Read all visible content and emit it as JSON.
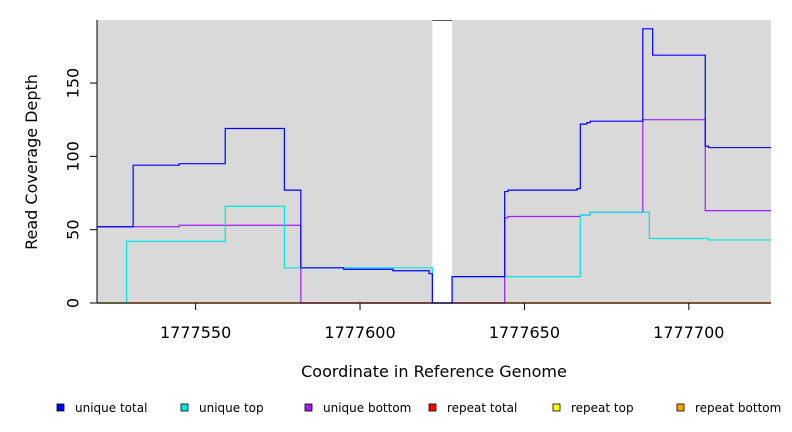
{
  "chart_data": {
    "type": "line",
    "step": true,
    "xlabel": "Coordinate in Reference Genome",
    "ylabel": "Read Coverage Depth",
    "xlim": [
      1777520,
      1777725
    ],
    "ylim": [
      0,
      193
    ],
    "xticks": [
      1777550,
      1777600,
      1777650,
      1777700
    ],
    "yticks": [
      0,
      50,
      100,
      150
    ],
    "gap": [
      1777622,
      1777628
    ],
    "background_color": "#d9d9d9",
    "series": [
      {
        "name": "unique total",
        "color": "#0000ff",
        "points": [
          [
            1777520,
            52
          ],
          [
            1777531,
            52
          ],
          [
            1777531,
            94
          ],
          [
            1777545,
            94
          ],
          [
            1777545,
            95
          ],
          [
            1777559,
            95
          ],
          [
            1777559,
            119
          ],
          [
            1777577,
            119
          ],
          [
            1777577,
            77
          ],
          [
            1777582,
            77
          ],
          [
            1777582,
            24
          ],
          [
            1777595,
            24
          ],
          [
            1777595,
            23
          ],
          [
            1777610,
            23
          ],
          [
            1777610,
            22
          ],
          [
            1777621,
            22
          ],
          [
            1777621,
            20
          ],
          [
            1777622,
            20
          ],
          [
            1777622,
            0
          ],
          [
            1777628,
            0
          ],
          [
            1777628,
            18
          ],
          [
            1777644,
            18
          ],
          [
            1777644,
            76
          ],
          [
            1777645,
            76
          ],
          [
            1777645,
            77
          ],
          [
            1777666,
            77
          ],
          [
            1777666,
            78
          ],
          [
            1777667,
            78
          ],
          [
            1777667,
            122
          ],
          [
            1777669,
            122
          ],
          [
            1777669,
            123
          ],
          [
            1777670,
            123
          ],
          [
            1777670,
            124
          ],
          [
            1777686,
            124
          ],
          [
            1777686,
            187
          ],
          [
            1777689,
            187
          ],
          [
            1777689,
            169
          ],
          [
            1777705,
            169
          ],
          [
            1777705,
            107
          ],
          [
            1777706,
            107
          ],
          [
            1777706,
            106
          ],
          [
            1777725,
            106
          ]
        ]
      },
      {
        "name": "unique top",
        "color": "#00e5e5",
        "points": [
          [
            1777520,
            0
          ],
          [
            1777529,
            0
          ],
          [
            1777529,
            42
          ],
          [
            1777559,
            42
          ],
          [
            1777559,
            66
          ],
          [
            1777577,
            66
          ],
          [
            1777577,
            24
          ],
          [
            1777622,
            24
          ],
          [
            1777622,
            0
          ],
          [
            1777628,
            0
          ],
          [
            1777628,
            18
          ],
          [
            1777667,
            18
          ],
          [
            1777667,
            60
          ],
          [
            1777670,
            60
          ],
          [
            1777670,
            62
          ],
          [
            1777688,
            62
          ],
          [
            1777688,
            44
          ],
          [
            1777706,
            44
          ],
          [
            1777706,
            43
          ],
          [
            1777725,
            43
          ]
        ]
      },
      {
        "name": "unique bottom",
        "color": "#a020f0",
        "points": [
          [
            1777520,
            52
          ],
          [
            1777545,
            52
          ],
          [
            1777545,
            53
          ],
          [
            1777582,
            53
          ],
          [
            1777582,
            0
          ],
          [
            1777644,
            0
          ],
          [
            1777644,
            58
          ],
          [
            1777645,
            58
          ],
          [
            1777645,
            59
          ],
          [
            1777667,
            59
          ],
          [
            1777667,
            60
          ],
          [
            1777670,
            60
          ],
          [
            1777670,
            62
          ],
          [
            1777686,
            62
          ],
          [
            1777686,
            125
          ],
          [
            1777705,
            125
          ],
          [
            1777705,
            63
          ],
          [
            1777725,
            63
          ]
        ]
      },
      {
        "name": "repeat total",
        "color": "#ff0000",
        "points": [
          [
            1777520,
            0
          ],
          [
            1777725,
            0
          ]
        ]
      },
      {
        "name": "repeat top",
        "color": "#ffff00",
        "points": [
          [
            1777520,
            0
          ],
          [
            1777725,
            0
          ]
        ]
      },
      {
        "name": "repeat bottom",
        "color": "#ffa500",
        "points": [
          [
            1777520,
            0
          ],
          [
            1777725,
            0
          ]
        ]
      }
    ],
    "legend": {
      "placement": "bottom",
      "entries": [
        {
          "label": "unique total",
          "color": "#0000ff"
        },
        {
          "label": "unique top",
          "color": "#00e5e5"
        },
        {
          "label": "unique bottom",
          "color": "#a020f0"
        },
        {
          "label": "repeat total",
          "color": "#ff0000"
        },
        {
          "label": "repeat top",
          "color": "#ffff00"
        },
        {
          "label": "repeat bottom",
          "color": "#ffa500"
        }
      ]
    }
  }
}
